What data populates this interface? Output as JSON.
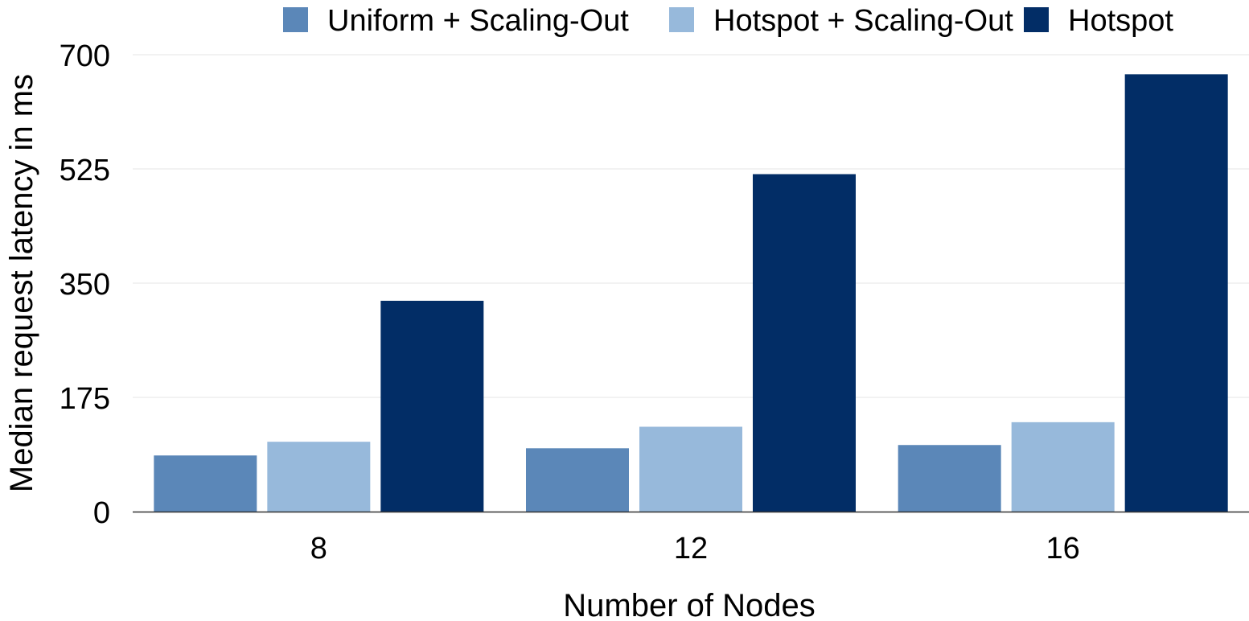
{
  "chart_data": {
    "type": "bar",
    "title": "",
    "xlabel": "Number of Nodes",
    "ylabel": "Median request latency in ms",
    "categories": [
      "8",
      "12",
      "16"
    ],
    "ylim": [
      0,
      700
    ],
    "yticks": [
      "0",
      "175",
      "350",
      "525",
      "700"
    ],
    "ytick_values": [
      0,
      175,
      350,
      525,
      700
    ],
    "grid": true,
    "legend_position": "top",
    "series": [
      {
        "name": "Uniform + Scaling-Out",
        "color": "#5b87b8",
        "values": [
          86,
          97,
          102
        ]
      },
      {
        "name": "Hotspot + Scaling-Out",
        "color": "#97b9db",
        "values": [
          107,
          130,
          137
        ]
      },
      {
        "name": "Hotspot",
        "color": "#022d66",
        "values": [
          323,
          517,
          670
        ]
      }
    ]
  }
}
